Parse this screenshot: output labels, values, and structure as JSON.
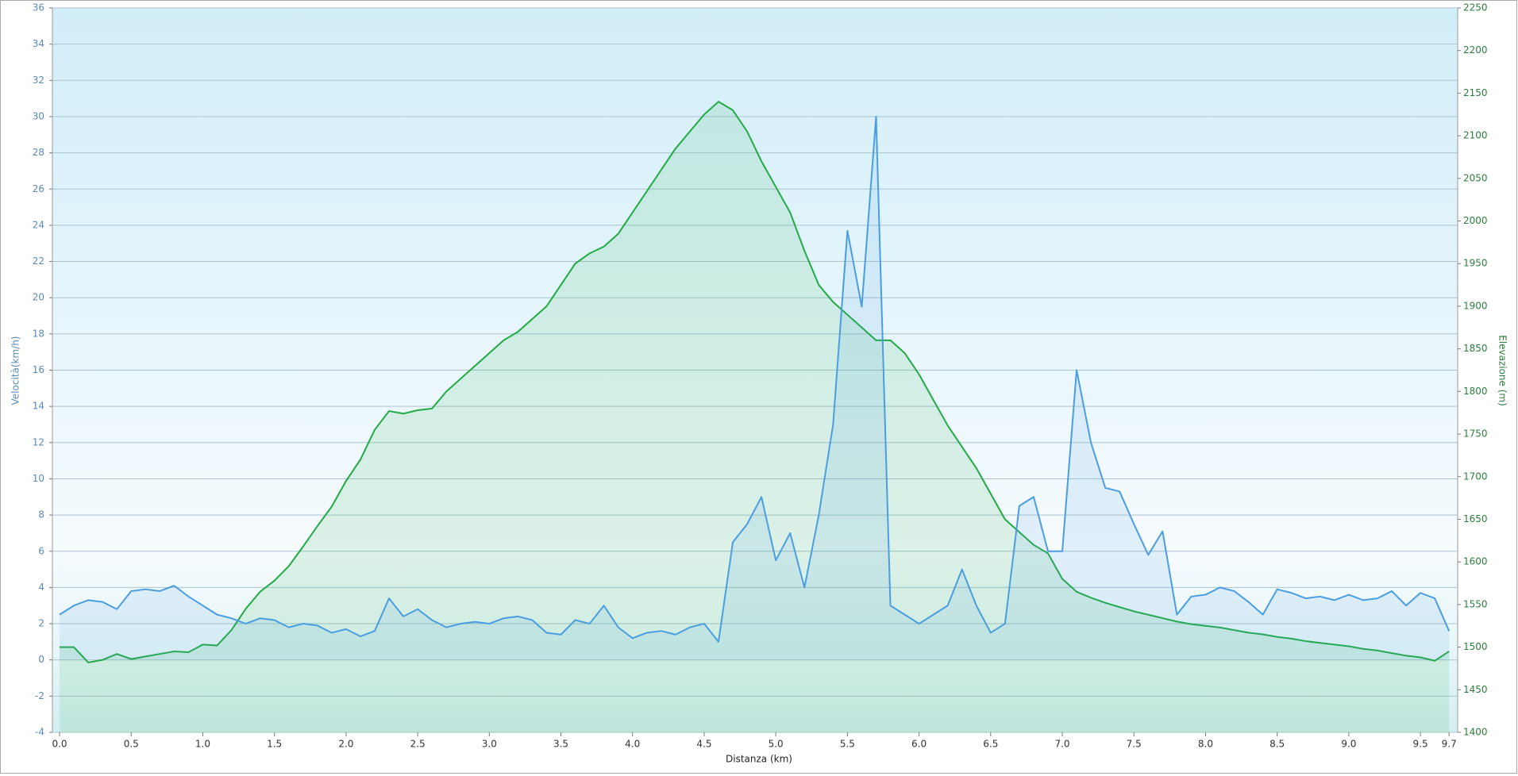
{
  "chart_data": {
    "type": "line",
    "xlabel": "Distanza  (km)",
    "ylabel": "Velocità(km/h)",
    "y2label": "Elevazione (m)",
    "xlim": [
      -0.05,
      9.76
    ],
    "xticks": [
      {
        "value": 0,
        "label": "0.0"
      },
      0.5,
      {
        "value": 1,
        "label": "1.0"
      },
      1.5,
      {
        "value": 2,
        "label": "2.0"
      },
      2.5,
      {
        "value": 3,
        "label": "3.0"
      },
      3.5,
      {
        "value": 4,
        "label": "4.0"
      },
      4.5,
      {
        "value": 5,
        "label": "5.0"
      },
      5.5,
      {
        "value": 6,
        "label": "6.0"
      },
      6.5,
      {
        "value": 7,
        "label": "7.0"
      },
      7.5,
      {
        "value": 8,
        "label": "8.0"
      },
      8.5,
      {
        "value": 9,
        "label": "9.0"
      },
      9.5,
      9.7
    ],
    "ylim": [
      -4,
      36
    ],
    "yticks": [
      -4,
      -2,
      0,
      2,
      4,
      6,
      8,
      10,
      12,
      14,
      16,
      18,
      20,
      22,
      24,
      26,
      28,
      30,
      32,
      34,
      36
    ],
    "y2lim": [
      1400,
      2250
    ],
    "y2ticks": [
      1400,
      1450,
      1500,
      1550,
      1600,
      1650,
      1700,
      1750,
      1800,
      1850,
      1900,
      1950,
      2000,
      2050,
      2100,
      2150,
      2200,
      2250
    ],
    "grid": true,
    "x": [
      0,
      0.1,
      0.2,
      0.3,
      0.4,
      0.5,
      0.6,
      0.7,
      0.8,
      0.9,
      1,
      1.1,
      1.2,
      1.3,
      1.4,
      1.5,
      1.6,
      1.7,
      1.8,
      1.9,
      2,
      2.1,
      2.2,
      2.3,
      2.4,
      2.5,
      2.6,
      2.7,
      2.8,
      2.9,
      3,
      3.1,
      3.2,
      3.3,
      3.4,
      3.5,
      3.6,
      3.7,
      3.8,
      3.9,
      4,
      4.1,
      4.2,
      4.3,
      4.4,
      4.5,
      4.6,
      4.7,
      4.8,
      4.9,
      5,
      5.1,
      5.2,
      5.3,
      5.4,
      5.5,
      5.6,
      5.7,
      5.8,
      5.9,
      6,
      6.1,
      6.2,
      6.3,
      6.4,
      6.5,
      6.6,
      6.7,
      6.8,
      6.9,
      7,
      7.1,
      7.2,
      7.3,
      7.4,
      7.5,
      7.6,
      7.7,
      7.8,
      7.9,
      8,
      8.1,
      8.2,
      8.3,
      8.4,
      8.5,
      8.6,
      8.7,
      8.8,
      8.9,
      9,
      9.1,
      9.2,
      9.3,
      9.4,
      9.5,
      9.6,
      9.7
    ],
    "series": [
      {
        "name": "Velocità",
        "color": "#4a9ee0",
        "axis": "y",
        "values": [
          2.5,
          3.0,
          3.3,
          3.2,
          2.8,
          3.8,
          3.9,
          3.8,
          4.1,
          3.5,
          3.0,
          2.5,
          2.3,
          2.0,
          2.3,
          2.2,
          1.8,
          2.0,
          1.9,
          1.5,
          1.7,
          1.3,
          1.6,
          3.4,
          2.4,
          2.8,
          2.2,
          1.8,
          2.0,
          2.1,
          2.0,
          2.3,
          2.4,
          2.2,
          1.5,
          1.4,
          2.2,
          2.0,
          3.0,
          1.8,
          1.2,
          1.5,
          1.6,
          1.4,
          1.8,
          2.0,
          1.0,
          6.5,
          7.5,
          9.0,
          5.5,
          7.0,
          4.0,
          8.0,
          13.0,
          23.7,
          19.5,
          30.0,
          3.0,
          2.5,
          2.0,
          2.5,
          3.0,
          5.0,
          3.0,
          1.5,
          2.0,
          8.5,
          9.0,
          6.0,
          6.0,
          16.0,
          12.0,
          9.5,
          9.3,
          7.5,
          5.8,
          7.1,
          2.5,
          3.5,
          3.6,
          4.0,
          3.8,
          3.2,
          2.5,
          3.9,
          3.7,
          3.4,
          3.5,
          3.3,
          3.6,
          3.3,
          3.4,
          3.8,
          3.0,
          3.7,
          3.4,
          1.6
        ]
      },
      {
        "name": "Elevazione",
        "color": "#22aa44",
        "axis": "y2",
        "values": [
          1500,
          1500,
          1482,
          1485,
          1492,
          1486,
          1489,
          1492,
          1495,
          1494,
          1503,
          1502,
          1520,
          1545,
          1565,
          1578,
          1595,
          1618,
          1642,
          1665,
          1695,
          1720,
          1755,
          1777,
          1774,
          1778,
          1780,
          1800,
          1815,
          1830,
          1845,
          1860,
          1870,
          1885,
          1900,
          1925,
          1950,
          1962,
          1970,
          1985,
          2010,
          2035,
          2060,
          2085,
          2105,
          2125,
          2140,
          2130,
          2105,
          2070,
          2040,
          2010,
          1965,
          1925,
          1905,
          1890,
          1875,
          1860,
          1860,
          1845,
          1820,
          1790,
          1760,
          1735,
          1710,
          1680,
          1650,
          1635,
          1620,
          1610,
          1580,
          1565,
          1558,
          1552,
          1547,
          1542,
          1538,
          1534,
          1530,
          1527,
          1525,
          1523,
          1520,
          1517,
          1515,
          1512,
          1510,
          1507,
          1505,
          1503,
          1501,
          1498,
          1496,
          1493,
          1490,
          1488,
          1484,
          1495
        ]
      }
    ]
  }
}
